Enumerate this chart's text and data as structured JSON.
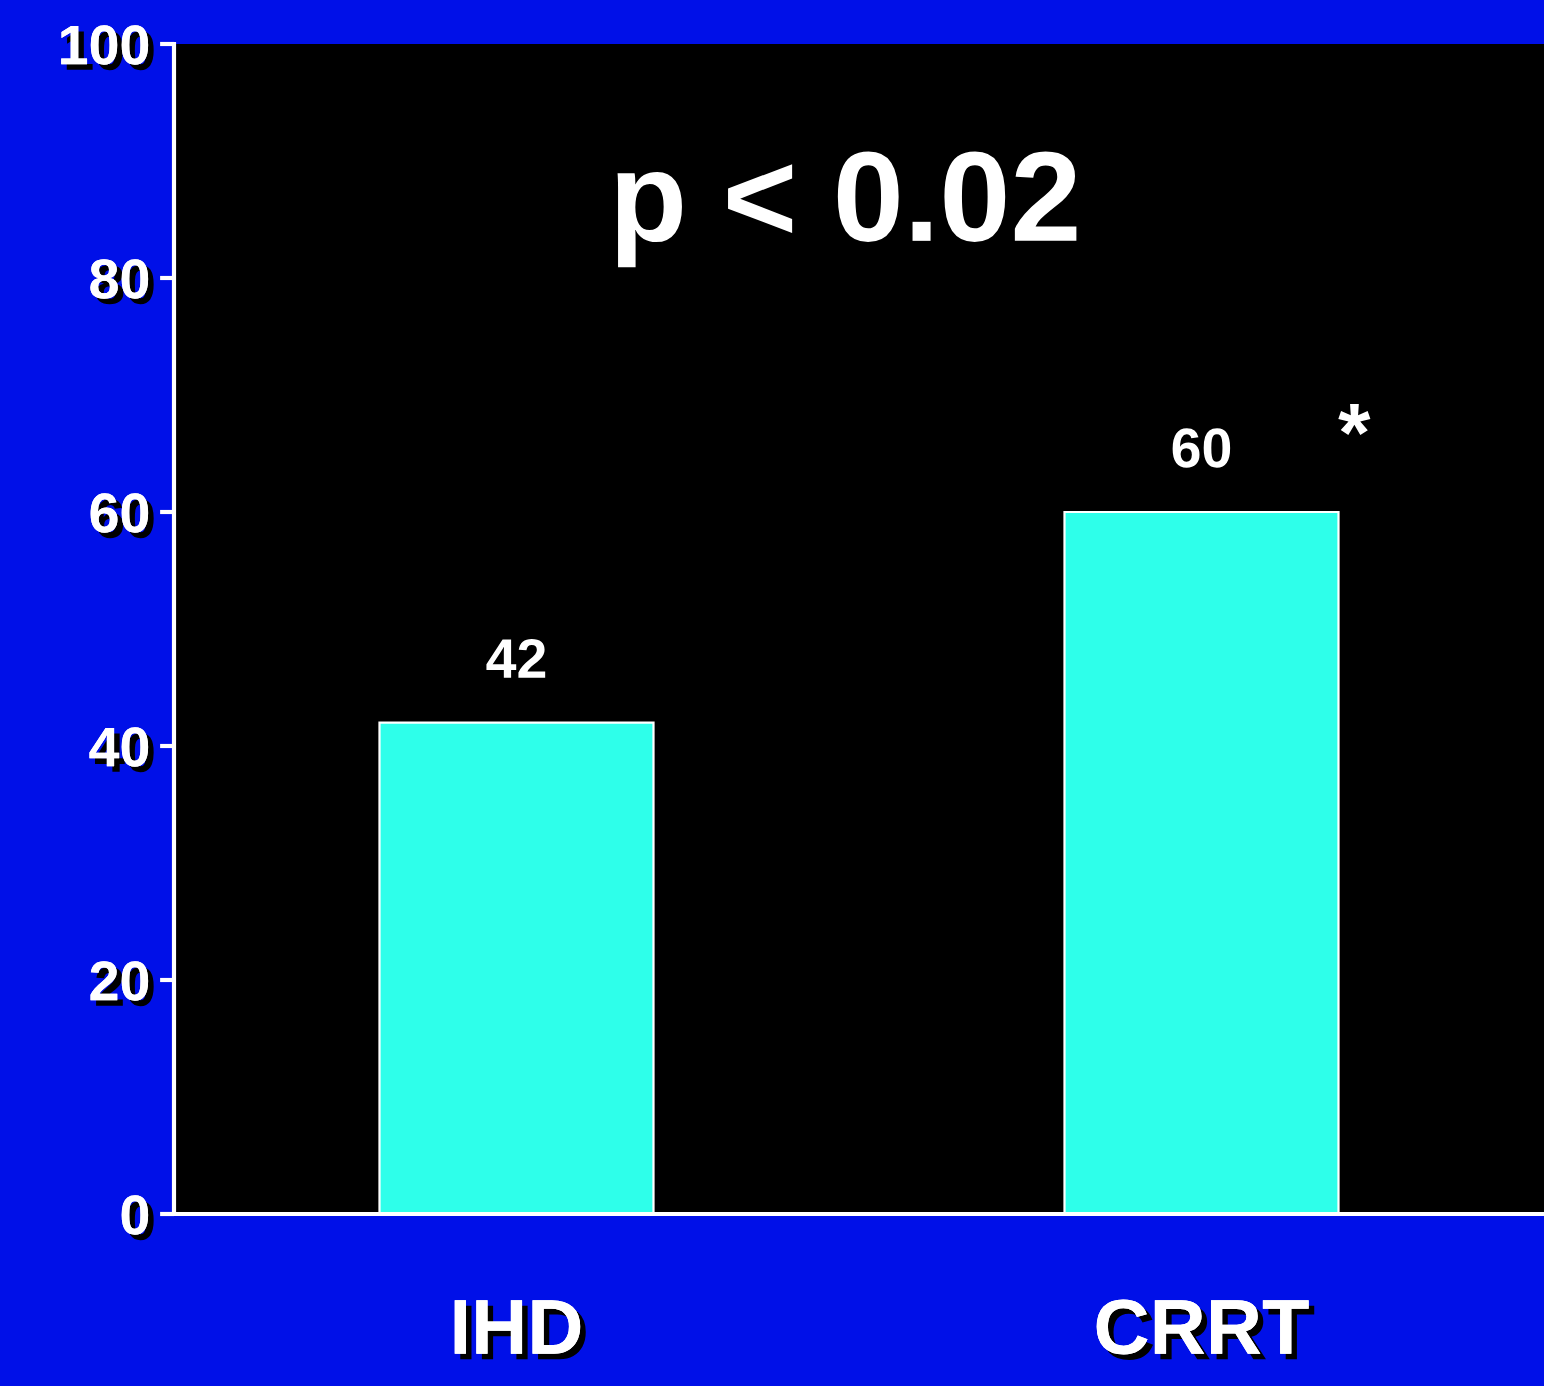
{
  "chart_data": {
    "type": "bar",
    "categories": [
      "IHD",
      "CRRT"
    ],
    "values": [
      42,
      60
    ],
    "color": "#2effea",
    "ylim": [
      0,
      100
    ],
    "yticks": [
      0,
      20,
      40,
      60,
      80,
      100
    ],
    "data_labels": true,
    "grid": false,
    "annotations": [
      "p < 0.02",
      {
        "text": "*",
        "x": "CRRT",
        "y": 60
      }
    ]
  }
}
